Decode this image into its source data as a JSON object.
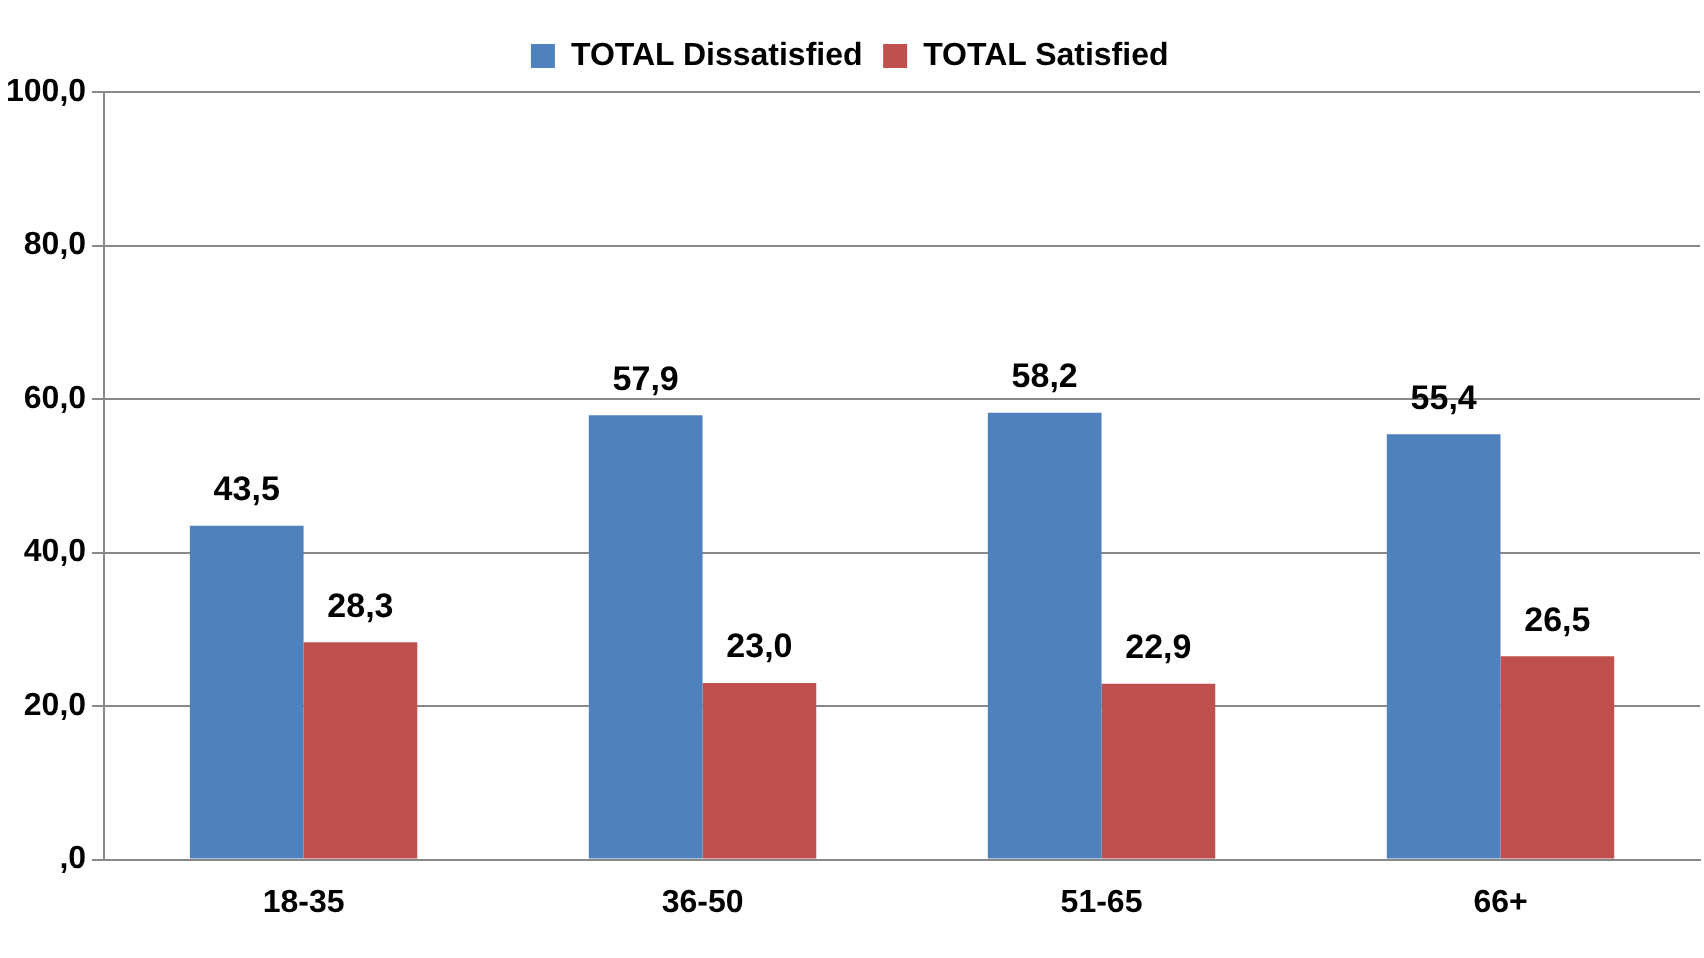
{
  "chart_data": {
    "type": "bar",
    "categories": [
      "18-35",
      "36-50",
      "51-65",
      "66+"
    ],
    "series": [
      {
        "name": "TOTAL Dissatisfied",
        "color": "#4f81bd",
        "values": [
          43.5,
          57.9,
          58.2,
          55.4
        ],
        "value_labels": [
          "43,5",
          "57,9",
          "58,2",
          "55,4"
        ]
      },
      {
        "name": "TOTAL Satisfied",
        "color": "#c0504d",
        "values": [
          28.3,
          23.0,
          22.9,
          26.5
        ],
        "value_labels": [
          "28,3",
          "23,0",
          "22,9",
          "26,5"
        ]
      }
    ],
    "ylim": [
      0,
      100
    ],
    "yticks": [
      {
        "value": 0,
        "label": ",0"
      },
      {
        "value": 20,
        "label": "20,0"
      },
      {
        "value": 40,
        "label": "40,0"
      },
      {
        "value": 60,
        "label": "60,0"
      },
      {
        "value": 80,
        "label": "80,0"
      },
      {
        "value": 100,
        "label": "100,0"
      }
    ],
    "grid": "y",
    "legend": "top"
  }
}
